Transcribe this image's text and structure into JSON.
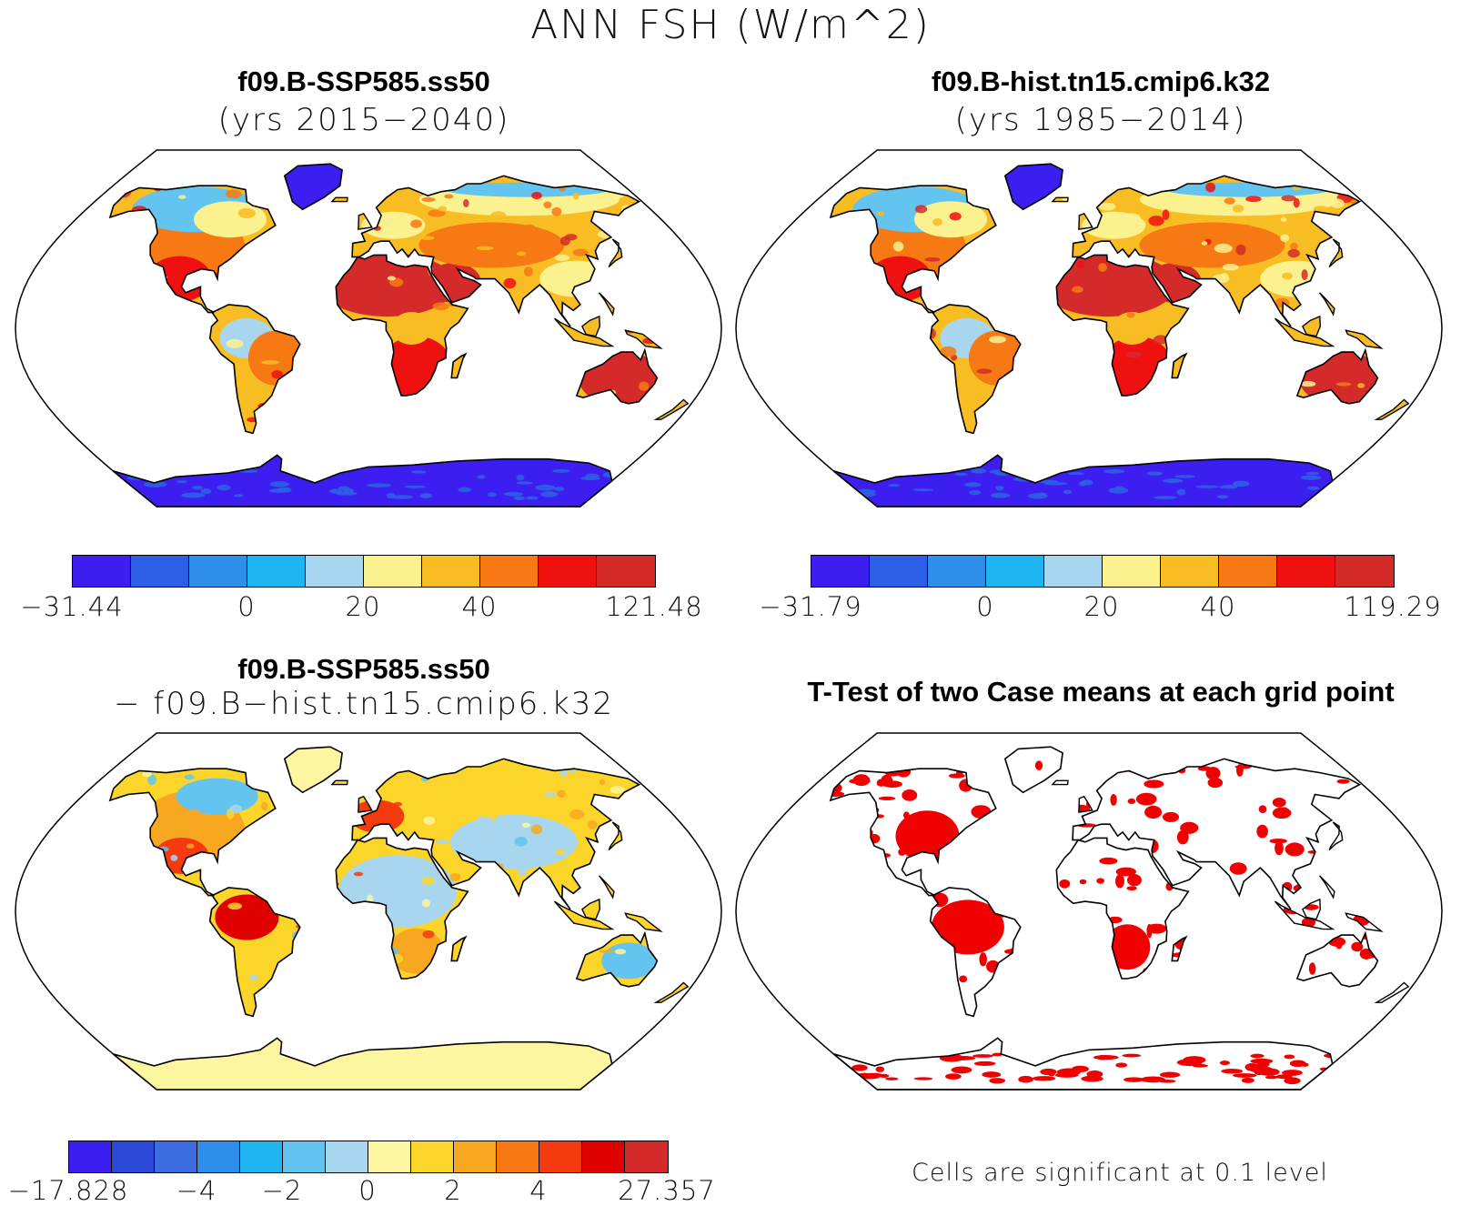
{
  "figure_title": "ANN FSH (W/m^2)",
  "panels": [
    {
      "id": "case",
      "title": "f09.B-SSP585.ss50",
      "subtitle": "(yrs 2015−2040)",
      "colorbar": {
        "colors": [
          "#3d1ef0",
          "#2c5fe6",
          "#2f8eea",
          "#1fb4f2",
          "#a8d6ef",
          "#fbf18f",
          "#f8bd22",
          "#f67913",
          "#f01010",
          "#d42b2a"
        ],
        "tick_labels": [
          {
            "text": "−31.44",
            "edge": 0
          },
          {
            "text": "0",
            "edge": 3
          },
          {
            "text": "20",
            "edge": 5
          },
          {
            "text": "40",
            "edge": 7
          },
          {
            "text": "121.48",
            "edge": 10
          }
        ]
      }
    },
    {
      "id": "reference",
      "title": "f09.B-hist.tn15.cmip6.k32",
      "subtitle": "(yrs 1985−2014)",
      "colorbar": {
        "colors": [
          "#3d1ef0",
          "#2c5fe6",
          "#2f8eea",
          "#1fb4f2",
          "#a8d6ef",
          "#fbf18f",
          "#f8bd22",
          "#f67913",
          "#f01010",
          "#d42b2a"
        ],
        "tick_labels": [
          {
            "text": "−31.79",
            "edge": 0
          },
          {
            "text": "0",
            "edge": 3
          },
          {
            "text": "20",
            "edge": 5
          },
          {
            "text": "40",
            "edge": 7
          },
          {
            "text": "119.29",
            "edge": 10
          }
        ]
      }
    },
    {
      "id": "difference",
      "title": "f09.B-SSP585.ss50",
      "subtitle": "− f09.B−hist.tn15.cmip6.k32",
      "colorbar": {
        "colors": [
          "#3d1ef0",
          "#2b49d6",
          "#3b6de0",
          "#2f8eea",
          "#1fb4f2",
          "#62c4ef",
          "#a8d6ef",
          "#fdf6a0",
          "#fbd52a",
          "#f8a820",
          "#f67913",
          "#f53a10",
          "#e00000",
          "#d42b2a"
        ],
        "tick_labels": [
          {
            "text": "−17.828",
            "edge": 0
          },
          {
            "text": "−4",
            "edge": 3
          },
          {
            "text": "−2",
            "edge": 5
          },
          {
            "text": "0",
            "edge": 7
          },
          {
            "text": "2",
            "edge": 9
          },
          {
            "text": "4",
            "edge": 11
          },
          {
            "text": "27.357",
            "edge": 14
          }
        ]
      }
    },
    {
      "id": "ttest",
      "title": "T-Test of two Case means at each grid point",
      "significance_color": "#f00000",
      "note": "Cells are significant at 0.1 level"
    }
  ],
  "colors": {
    "antarctica_cold": "#3d1ef0",
    "land_warm": "#f01010",
    "land_mid": "#f8bd22",
    "land_light": "#fbf18f",
    "land_cool": "#a8d6ef",
    "significant": "#f00000"
  }
}
